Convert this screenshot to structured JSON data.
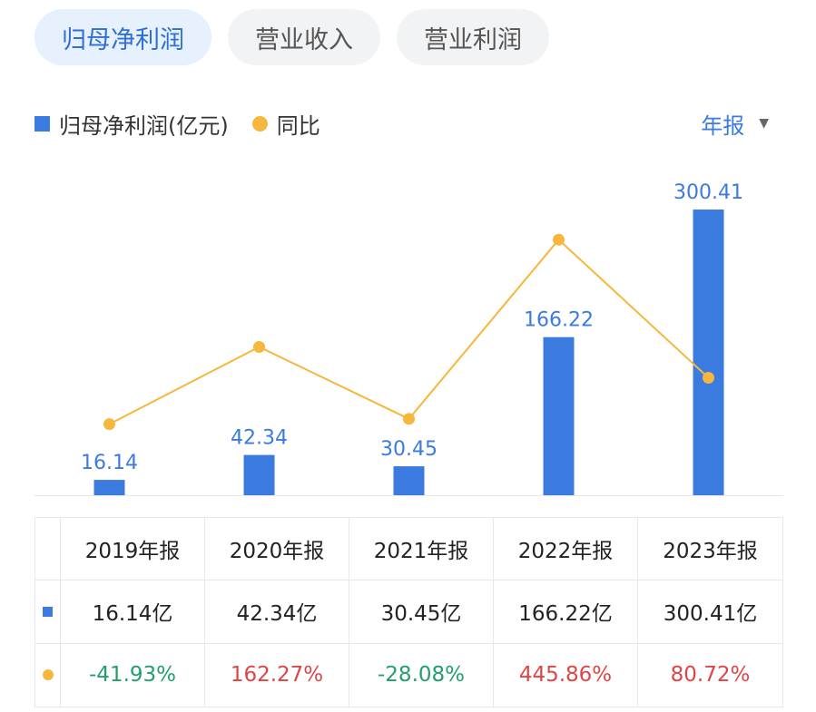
{
  "tabs": [
    {
      "label": "归母净利润",
      "active": true
    },
    {
      "label": "营业收入",
      "active": false
    },
    {
      "label": "营业利润",
      "active": false
    }
  ],
  "legend": {
    "bar_label": "归母净利润(亿元)",
    "line_label": "同比"
  },
  "period_selector": {
    "label": "年报"
  },
  "colors": {
    "bar": "#3b7bdf",
    "line": "#f6b73c",
    "positive": "#e04545",
    "negative": "#22a06b",
    "active_tab_text": "#2f6fd8",
    "active_tab_bg": "#e7f0fd"
  },
  "chart_data": {
    "type": "bar",
    "categories": [
      "2019年报",
      "2020年报",
      "2021年报",
      "2022年报",
      "2023年报"
    ],
    "series": [
      {
        "name": "归母净利润(亿元)",
        "type": "bar",
        "values": [
          16.14,
          42.34,
          30.45,
          166.22,
          300.41
        ],
        "labels": [
          "16.14",
          "42.34",
          "30.45",
          "166.22",
          "300.41"
        ]
      },
      {
        "name": "同比",
        "type": "line",
        "values": [
          -41.93,
          162.27,
          -28.08,
          445.86,
          80.72
        ]
      }
    ],
    "bar_ylim": [
      0,
      330
    ],
    "line_ylim": [
      -230,
      600
    ],
    "grid": false,
    "legend_position": "top-left"
  },
  "table": {
    "header": [
      "2019年报",
      "2020年报",
      "2021年报",
      "2022年报",
      "2023年报"
    ],
    "values_row": [
      "16.14亿",
      "42.34亿",
      "30.45亿",
      "166.22亿",
      "300.41亿"
    ],
    "yoy_row": [
      "-41.93%",
      "162.27%",
      "-28.08%",
      "445.86%",
      "80.72%"
    ]
  }
}
